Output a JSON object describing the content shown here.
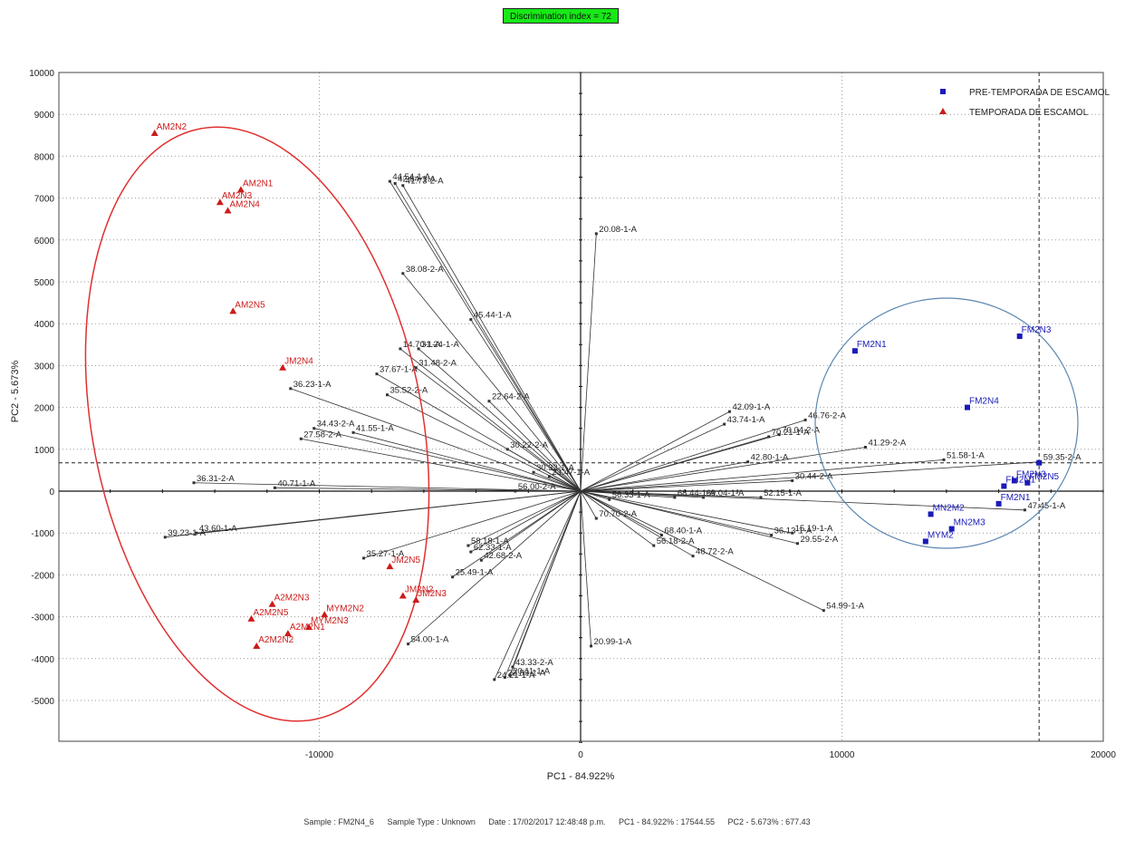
{
  "badge": "Discrimination index = 72",
  "footer": {
    "sample": "Sample : FM2N4_6",
    "type": "Sample Type : Unknown",
    "date": "Date : 17/02/2017 12:48:48 p.m.",
    "pc1": "PC1 - 84.922% : 17544.55",
    "pc2": "PC2 - 5.673% : 677.43"
  },
  "colors": {
    "pre": "#1a1ab8",
    "temp": "#cc1a1a",
    "ellipse_red": "#e03030",
    "ellipse_blue": "#5a86b0",
    "badge": "#18e818"
  },
  "chart_data": {
    "type": "scatter",
    "title": "",
    "xlabel": "PC1 - 84.922%",
    "ylabel": "PC2 - 5.673%",
    "xlim": [
      -20000,
      20000
    ],
    "ylim": [
      -6000,
      10000
    ],
    "xticks": [
      -10000,
      0,
      10000,
      20000
    ],
    "yticks": [
      10000,
      9000,
      8000,
      7000,
      6000,
      5000,
      4000,
      3000,
      2000,
      1000,
      0,
      -1000,
      -2000,
      -3000,
      -4000,
      -5000
    ],
    "grid": "dotted",
    "legend_position": "top-right",
    "crosshair": {
      "x": 17544.55,
      "y": 677.43
    },
    "series": [
      {
        "name": "PRE-TEMPORADA DE ESCAMOL",
        "marker": "square",
        "points": [
          {
            "label": "FM2N1",
            "x": 10500,
            "y": 3350
          },
          {
            "label": "FM2N3",
            "x": 16800,
            "y": 3700
          },
          {
            "label": "FM2N4",
            "x": 14800,
            "y": 2000
          },
          {
            "label": "FM2N3",
            "x": 16600,
            "y": 250
          },
          {
            "label": "FM2N1",
            "x": 16200,
            "y": 120
          },
          {
            "label": "FM2N5",
            "x": 17100,
            "y": 200
          },
          {
            "label": "FM2N1",
            "x": 16000,
            "y": -300
          },
          {
            "label": "MN2M2",
            "x": 13400,
            "y": -550
          },
          {
            "label": "MN2M3",
            "x": 14200,
            "y": -900
          },
          {
            "label": "MYM2",
            "x": 13200,
            "y": -1200
          },
          {
            "label": "",
            "x": 17544,
            "y": 677
          }
        ]
      },
      {
        "name": "TEMPORADA DE ESCAMOL",
        "marker": "triangle",
        "points": [
          {
            "label": "AM2N2",
            "x": -16300,
            "y": 8550
          },
          {
            "label": "AM2N1",
            "x": -13000,
            "y": 7200
          },
          {
            "label": "AM2N3",
            "x": -13800,
            "y": 6900
          },
          {
            "label": "AM2N4",
            "x": -13500,
            "y": 6700
          },
          {
            "label": "AM2N5",
            "x": -13300,
            "y": 4300
          },
          {
            "label": "JM2N4",
            "x": -11400,
            "y": 2950
          },
          {
            "label": "JM2N5",
            "x": -7300,
            "y": -1800
          },
          {
            "label": "JM2N2",
            "x": -6800,
            "y": -2500
          },
          {
            "label": "JM2N3",
            "x": -6300,
            "y": -2600
          },
          {
            "label": "A2M2N3",
            "x": -11800,
            "y": -2700
          },
          {
            "label": "A2M2N5",
            "x": -12600,
            "y": -3050
          },
          {
            "label": "MYM2N2",
            "x": -9800,
            "y": -2950
          },
          {
            "label": "MYM2N3",
            "x": -10400,
            "y": -3250
          },
          {
            "label": "A2M2N2",
            "x": -12400,
            "y": -3700
          },
          {
            "label": "A2M2N1",
            "x": -11200,
            "y": -3400
          }
        ]
      }
    ],
    "loadings": [
      {
        "label": "36.31-2-A",
        "x": -14800,
        "y": 200
      },
      {
        "label": "40.71-1-A",
        "x": -11700,
        "y": 80
      },
      {
        "label": "39.23-1-A",
        "x": -15900,
        "y": -1100
      },
      {
        "label": "43.60-1-A",
        "x": -14700,
        "y": -1000
      },
      {
        "label": "36.23-1-A",
        "x": -11100,
        "y": 2450
      },
      {
        "label": "34.43-2-A",
        "x": -10200,
        "y": 1500
      },
      {
        "label": "41.55-1-A",
        "x": -8700,
        "y": 1400
      },
      {
        "label": "27.58-2-A",
        "x": -10700,
        "y": 1250
      },
      {
        "label": "37.67-1-A",
        "x": -7800,
        "y": 2800
      },
      {
        "label": "35.52-2-A",
        "x": -7400,
        "y": 2300
      },
      {
        "label": "14.70-1-A",
        "x": -6900,
        "y": 3400
      },
      {
        "label": "31.24-1-A",
        "x": -6200,
        "y": 3400
      },
      {
        "label": "31.48-2-A",
        "x": -6300,
        "y": 2950
      },
      {
        "label": "38.08-2-A",
        "x": -6800,
        "y": 5200
      },
      {
        "label": "44.54-1-A",
        "x": -7300,
        "y": 7400
      },
      {
        "label": "42.64-1-A",
        "x": -7100,
        "y": 7350
      },
      {
        "label": "41.73-2-A",
        "x": -6800,
        "y": 7300
      },
      {
        "label": "45.44-1-A",
        "x": -4200,
        "y": 4100
      },
      {
        "label": "22.64-2-A",
        "x": -3500,
        "y": 2150
      },
      {
        "label": "30.22-2-A",
        "x": -2800,
        "y": 1000
      },
      {
        "label": "30.33-1-A",
        "x": -1800,
        "y": 450
      },
      {
        "label": "23.47-1-A",
        "x": -1200,
        "y": 350
      },
      {
        "label": "56.00-2-A",
        "x": -2500,
        "y": 0
      },
      {
        "label": "20.08-1-A",
        "x": 600,
        "y": 6150
      },
      {
        "label": "20.99-1-A",
        "x": 400,
        "y": -3700
      },
      {
        "label": "35.27-1-A",
        "x": -8300,
        "y": -1600
      },
      {
        "label": "54.00-1-A",
        "x": -6600,
        "y": -3650
      },
      {
        "label": "58.18-1-A",
        "x": -4300,
        "y": -1300
      },
      {
        "label": "62.33-1-A",
        "x": -4200,
        "y": -1450
      },
      {
        "label": "42.68-2-A",
        "x": -3800,
        "y": -1650
      },
      {
        "label": "25.49-1-A",
        "x": -4900,
        "y": -2050
      },
      {
        "label": "43.33-2-A",
        "x": -2600,
        "y": -4200
      },
      {
        "label": "24.21-1-A",
        "x": -3300,
        "y": -4500
      },
      {
        "label": "22.89-1-A",
        "x": -2900,
        "y": -4450
      },
      {
        "label": "20.11-1-A",
        "x": -2700,
        "y": -4400
      },
      {
        "label": "42.09-1-A",
        "x": 5700,
        "y": 1900
      },
      {
        "label": "43.74-1-A",
        "x": 5500,
        "y": 1600
      },
      {
        "label": "70.21-1-A",
        "x": 7200,
        "y": 1300
      },
      {
        "label": "70.04-2-A",
        "x": 7600,
        "y": 1350
      },
      {
        "label": "46.76-2-A",
        "x": 8600,
        "y": 1700
      },
      {
        "label": "41.29-2-A",
        "x": 10900,
        "y": 1050
      },
      {
        "label": "42.80-1-A",
        "x": 6400,
        "y": 700
      },
      {
        "label": "51.58-1-A",
        "x": 13900,
        "y": 750
      },
      {
        "label": "59.35-2-A",
        "x": 17600,
        "y": 700
      },
      {
        "label": "30.44-2-A",
        "x": 8100,
        "y": 250
      },
      {
        "label": "52.15-1-A",
        "x": 6900,
        "y": -150
      },
      {
        "label": "68.44-1-A",
        "x": 3600,
        "y": -150
      },
      {
        "label": "69.04-1-A",
        "x": 4700,
        "y": -150
      },
      {
        "label": "56.33-1-A",
        "x": 1100,
        "y": -200
      },
      {
        "label": "70.70-2-A",
        "x": 600,
        "y": -650
      },
      {
        "label": "68.40-1-A",
        "x": 3100,
        "y": -1050
      },
      {
        "label": "56.18-2-A",
        "x": 2800,
        "y": -1300
      },
      {
        "label": "48.72-2-A",
        "x": 4300,
        "y": -1550
      },
      {
        "label": "36.13-1-A",
        "x": 7300,
        "y": -1050
      },
      {
        "label": "15.19-1-A",
        "x": 8100,
        "y": -1000
      },
      {
        "label": "29.55-2-A",
        "x": 8300,
        "y": -1250
      },
      {
        "label": "47.45-1-A",
        "x": 17000,
        "y": -450
      },
      {
        "label": "54.99-1-A",
        "x": 9300,
        "y": -2850
      }
    ]
  }
}
